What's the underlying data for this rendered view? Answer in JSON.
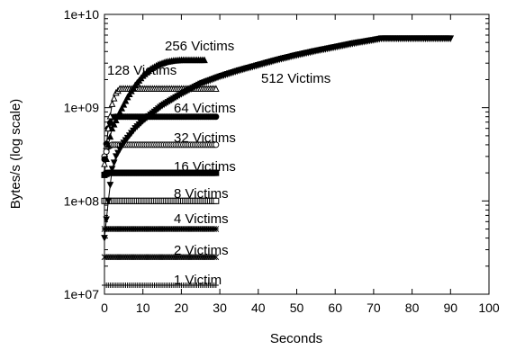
{
  "chart_data": {
    "type": "line",
    "xlabel": "Seconds",
    "ylabel": "Bytes/s (log scale)",
    "xlim": [
      0,
      100
    ],
    "ylim": [
      10000000,
      10000000000
    ],
    "yscale": "log",
    "grid": false,
    "x_ticks": [
      "0",
      "10",
      "20",
      "30",
      "40",
      "50",
      "60",
      "70",
      "80",
      "90",
      "100"
    ],
    "y_ticks": [
      "1e+07",
      "1e+08",
      "1e+09",
      "1e+10"
    ],
    "series": [
      {
        "name": "1 Victim",
        "marker": "plus",
        "points": [
          [
            0,
            12500000
          ],
          [
            1,
            12500000
          ],
          [
            2,
            12500000
          ],
          [
            5,
            12500000
          ],
          [
            10,
            12500000
          ],
          [
            15,
            12500000
          ],
          [
            20,
            12500000
          ],
          [
            25,
            12500000
          ],
          [
            29,
            12500000
          ]
        ]
      },
      {
        "name": "2 Victims",
        "marker": "x",
        "points": [
          [
            0,
            25000000
          ],
          [
            1,
            25000000
          ],
          [
            2,
            25000000
          ],
          [
            5,
            25000000
          ],
          [
            10,
            25000000
          ],
          [
            15,
            25000000
          ],
          [
            20,
            25000000
          ],
          [
            25,
            25000000
          ],
          [
            29,
            25000000
          ]
        ]
      },
      {
        "name": "4 Victims",
        "marker": "star",
        "points": [
          [
            0,
            50000000
          ],
          [
            1,
            50000000
          ],
          [
            2,
            50000000
          ],
          [
            5,
            50000000
          ],
          [
            10,
            50000000
          ],
          [
            15,
            50000000
          ],
          [
            20,
            50000000
          ],
          [
            25,
            50000000
          ],
          [
            29,
            50000000
          ]
        ]
      },
      {
        "name": "8 Victims",
        "marker": "square-open",
        "points": [
          [
            0,
            100000000
          ],
          [
            1,
            100000000
          ],
          [
            2,
            100000000
          ],
          [
            5,
            100000000
          ],
          [
            10,
            100000000
          ],
          [
            15,
            100000000
          ],
          [
            20,
            100000000
          ],
          [
            25,
            100000000
          ],
          [
            29,
            100000000
          ]
        ]
      },
      {
        "name": "16 Victims",
        "marker": "square-filled",
        "points": [
          [
            0,
            190000000
          ],
          [
            1,
            200000000
          ],
          [
            2,
            200000000
          ],
          [
            5,
            200000000
          ],
          [
            10,
            200000000
          ],
          [
            15,
            200000000
          ],
          [
            20,
            200000000
          ],
          [
            25,
            200000000
          ],
          [
            29,
            200000000
          ]
        ]
      },
      {
        "name": "32 Victims",
        "marker": "circle-open",
        "points": [
          [
            0,
            300000000
          ],
          [
            1,
            380000000
          ],
          [
            2,
            400000000
          ],
          [
            5,
            400000000
          ],
          [
            10,
            400000000
          ],
          [
            15,
            400000000
          ],
          [
            20,
            400000000
          ],
          [
            25,
            400000000
          ],
          [
            29,
            400000000
          ]
        ]
      },
      {
        "name": "64 Victims",
        "marker": "circle-filled",
        "points": [
          [
            0,
            280000000
          ],
          [
            1,
            600000000
          ],
          [
            2,
            790000000
          ],
          [
            3,
            800000000
          ],
          [
            5,
            800000000
          ],
          [
            10,
            800000000
          ],
          [
            15,
            800000000
          ],
          [
            20,
            800000000
          ],
          [
            25,
            800000000
          ],
          [
            29,
            800000000
          ]
        ]
      },
      {
        "name": "128 Victims",
        "marker": "triangle-open",
        "points": [
          [
            0,
            250000000
          ],
          [
            1,
            600000000
          ],
          [
            2,
            1100000000
          ],
          [
            3,
            1450000000
          ],
          [
            4,
            1600000000
          ],
          [
            5,
            1600000000
          ],
          [
            10,
            1600000000
          ],
          [
            15,
            1600000000
          ],
          [
            20,
            1600000000
          ],
          [
            25,
            1600000000
          ],
          [
            29,
            1600000000
          ]
        ]
      },
      {
        "name": "256 Victims",
        "marker": "triangle-filled",
        "points": [
          [
            0,
            200000000
          ],
          [
            1,
            400000000
          ],
          [
            2,
            600000000
          ],
          [
            4,
            900000000
          ],
          [
            6,
            1300000000
          ],
          [
            8,
            1750000000
          ],
          [
            10,
            2200000000
          ],
          [
            12,
            2600000000
          ],
          [
            14,
            2900000000
          ],
          [
            16,
            3100000000
          ],
          [
            18,
            3200000000
          ],
          [
            20,
            3250000000
          ],
          [
            22,
            3250000000
          ],
          [
            24,
            3250000000
          ],
          [
            26,
            3250000000
          ]
        ]
      },
      {
        "name": "512 Victims",
        "marker": "triangle-down",
        "points": [
          [
            0,
            40000000
          ],
          [
            1,
            100000000
          ],
          [
            2,
            220000000
          ],
          [
            3,
            300000000
          ],
          [
            5,
            420000000
          ],
          [
            8,
            600000000
          ],
          [
            10,
            720000000
          ],
          [
            15,
            1050000000
          ],
          [
            20,
            1400000000
          ],
          [
            25,
            1800000000
          ],
          [
            30,
            2150000000
          ],
          [
            35,
            2500000000
          ],
          [
            40,
            2850000000
          ],
          [
            45,
            3250000000
          ],
          [
            50,
            3650000000
          ],
          [
            55,
            4050000000
          ],
          [
            60,
            4450000000
          ],
          [
            65,
            4900000000
          ],
          [
            70,
            5300000000
          ],
          [
            72,
            5500000000
          ],
          [
            75,
            5500000000
          ],
          [
            80,
            5500000000
          ],
          [
            85,
            5500000000
          ],
          [
            90,
            5500000000
          ]
        ]
      }
    ]
  }
}
